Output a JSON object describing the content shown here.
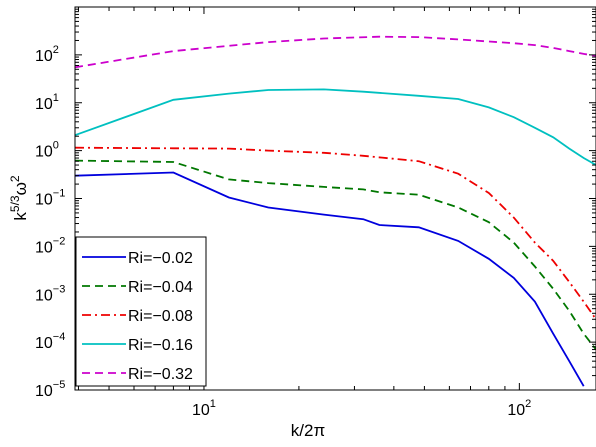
{
  "chart_data": {
    "type": "line",
    "xlabel": "k/2π",
    "ylabel_main": "k",
    "ylabel_sup": "5/3",
    "ylabel_omega": "ω",
    "ylabel_omega_sup": "2",
    "xscale": "log",
    "yscale": "log",
    "xlim": [
      3.9,
      175
    ],
    "ylim": [
      1e-05,
      1000
    ],
    "x_ticks": [
      {
        "value": 10,
        "base": "10",
        "exp": "1"
      },
      {
        "value": 100,
        "base": "10",
        "exp": "2"
      }
    ],
    "y_ticks": [
      {
        "value": 1e-05,
        "base": "10",
        "exp": "−5"
      },
      {
        "value": 0.0001,
        "base": "10",
        "exp": "−4"
      },
      {
        "value": 0.001,
        "base": "10",
        "exp": "−3"
      },
      {
        "value": 0.01,
        "base": "10",
        "exp": "−2"
      },
      {
        "value": 0.1,
        "base": "10",
        "exp": "−1"
      },
      {
        "value": 1,
        "base": "10",
        "exp": "0"
      },
      {
        "value": 10,
        "base": "10",
        "exp": "1"
      },
      {
        "value": 100,
        "base": "10",
        "exp": "2"
      }
    ],
    "grid": false,
    "legend_position": "bottom-left",
    "series": [
      {
        "name": "Ri=−0.02",
        "color": "#0000dd",
        "dash": "solid",
        "points": [
          [
            3.9,
            0.3
          ],
          [
            8,
            0.35
          ],
          [
            12,
            0.105
          ],
          [
            16,
            0.065
          ],
          [
            24,
            0.046
          ],
          [
            32,
            0.037
          ],
          [
            36,
            0.028
          ],
          [
            48,
            0.025
          ],
          [
            64,
            0.013
          ],
          [
            80,
            0.0055
          ],
          [
            96,
            0.0022
          ],
          [
            112,
            0.0007
          ],
          [
            128,
            0.00015
          ],
          [
            144,
            4e-05
          ],
          [
            160,
            1.2e-05
          ]
        ]
      },
      {
        "name": "Ri=−0.04",
        "color": "#007700",
        "dash": "dashed",
        "points": [
          [
            3.9,
            0.62
          ],
          [
            8,
            0.58
          ],
          [
            12,
            0.25
          ],
          [
            16,
            0.21
          ],
          [
            24,
            0.175
          ],
          [
            32,
            0.155
          ],
          [
            36,
            0.135
          ],
          [
            48,
            0.12
          ],
          [
            64,
            0.065
          ],
          [
            80,
            0.032
          ],
          [
            96,
            0.012
          ],
          [
            112,
            0.0038
          ],
          [
            128,
            0.0013
          ],
          [
            144,
            0.00045
          ],
          [
            160,
            0.00015
          ],
          [
            175,
            7e-05
          ]
        ]
      },
      {
        "name": "Ri=−0.08",
        "color": "#ee0000",
        "dash": "dashdot",
        "points": [
          [
            3.9,
            1.15
          ],
          [
            8,
            1.12
          ],
          [
            12,
            1.1
          ],
          [
            16,
            1.0
          ],
          [
            24,
            0.9
          ],
          [
            32,
            0.78
          ],
          [
            48,
            0.6
          ],
          [
            64,
            0.33
          ],
          [
            80,
            0.13
          ],
          [
            96,
            0.04
          ],
          [
            112,
            0.012
          ],
          [
            128,
            0.005
          ],
          [
            144,
            0.0018
          ],
          [
            160,
            0.0007
          ],
          [
            175,
            0.0003
          ]
        ]
      },
      {
        "name": "Ri=−0.16",
        "color": "#00c0c0",
        "dash": "solid",
        "points": [
          [
            3.9,
            2.1
          ],
          [
            8,
            11.5
          ],
          [
            12,
            15.5
          ],
          [
            16,
            18.5
          ],
          [
            24,
            19
          ],
          [
            32,
            17
          ],
          [
            48,
            14
          ],
          [
            64,
            12
          ],
          [
            80,
            8
          ],
          [
            96,
            5
          ],
          [
            112,
            3
          ],
          [
            128,
            1.9
          ],
          [
            144,
            1.1
          ],
          [
            160,
            0.7
          ],
          [
            175,
            0.5
          ]
        ]
      },
      {
        "name": "Ri=−0.32",
        "color": "#cc00cc",
        "dash": "dashed",
        "points": [
          [
            3.9,
            55
          ],
          [
            8,
            120
          ],
          [
            12,
            155
          ],
          [
            16,
            185
          ],
          [
            24,
            220
          ],
          [
            36,
            240
          ],
          [
            48,
            235
          ],
          [
            64,
            210
          ],
          [
            80,
            190
          ],
          [
            96,
            175
          ],
          [
            112,
            160
          ],
          [
            128,
            140
          ],
          [
            144,
            120
          ],
          [
            160,
            105
          ],
          [
            175,
            95
          ]
        ]
      }
    ]
  }
}
